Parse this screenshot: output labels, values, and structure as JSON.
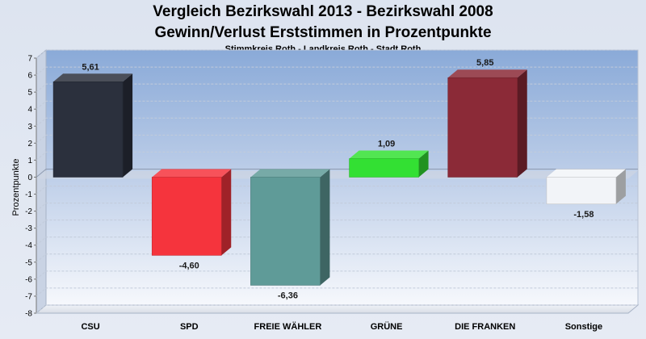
{
  "chart_data": {
    "type": "bar",
    "title": "Vergleich Bezirkswahl 2013 - Bezirkswahl 2008",
    "subtitle": "Gewinn/Verlust Erststimmen in Prozentpunkte",
    "caption": "Stimmkreis Roth - Landkreis Roth - Stadt Roth",
    "ylabel": "Prozentpunkte",
    "xlabel": "",
    "ylim": [
      -8,
      7
    ],
    "yticks": [
      "7",
      "6",
      "5",
      "4",
      "3",
      "2",
      "1",
      "0",
      "-1",
      "-2",
      "-3",
      "-4",
      "-5",
      "-6",
      "-7",
      "-8"
    ],
    "categories": [
      "CSU",
      "SPD",
      "FREIE WÄHLER",
      "GRÜNE",
      "DIE FRANKEN",
      "Sonstige"
    ],
    "values": [
      5.61,
      -4.6,
      -6.36,
      1.09,
      5.85,
      -1.58
    ],
    "value_labels": [
      "5,61",
      "-4,60",
      "-6,36",
      "1,09",
      "5,85",
      "-1,58"
    ],
    "colors": [
      "#2b303d",
      "#f5343d",
      "#5f9b98",
      "#33e033",
      "#8b2a37",
      "#f2f4f8"
    ],
    "grid": true,
    "style": "3d"
  }
}
